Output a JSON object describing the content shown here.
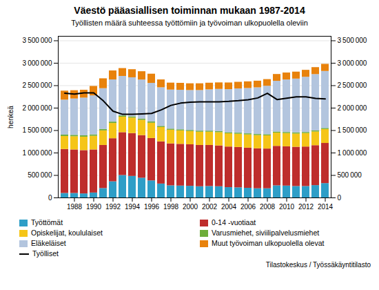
{
  "chart_data": {
    "type": "bar",
    "title": "Väestö pääasiallisen toiminnan mukaan 1987-2014",
    "subtitle": "Työllisten määrä suhteessa työttömiin ja työvoiman ulkopuolella oleviin",
    "ylabel": "henkeä",
    "source": "Tilastokeskus / Työssäkäyntitilasto",
    "categories": [
      null,
      "1988",
      null,
      "1990",
      null,
      "1992",
      null,
      "1994",
      null,
      "1996",
      null,
      "1998",
      null,
      "2000",
      null,
      "2002",
      null,
      "2004",
      null,
      "2006",
      null,
      "2008",
      null,
      "2010",
      null,
      "2012",
      null,
      "2014"
    ],
    "stacked": true,
    "series": [
      {
        "name": "Työttömät",
        "color": "#2E9EC7",
        "values": [
          100000,
          100000,
          90000,
          110000,
          210000,
          360000,
          500000,
          480000,
          440000,
          380000,
          310000,
          270000,
          265000,
          260000,
          250000,
          255000,
          250000,
          230000,
          225000,
          215000,
          205000,
          205000,
          270000,
          265000,
          255000,
          255000,
          275000,
          320000
        ]
      },
      {
        "name": "0-14 -vuotiaat",
        "color": "#BE2D2C",
        "values": [
          980000,
          970000,
          965000,
          960000,
          960000,
          960000,
          955000,
          955000,
          950000,
          945000,
          940000,
          935000,
          930000,
          925000,
          920000,
          915000,
          910000,
          905000,
          900000,
          895000,
          890000,
          885000,
          880000,
          875000,
          875000,
          880000,
          890000,
          895000
        ]
      },
      {
        "name": "Opiskelijat, koululaiset",
        "color": "#F5C518",
        "values": [
          290000,
          295000,
          300000,
          305000,
          325000,
          340000,
          345000,
          345000,
          340000,
          340000,
          320000,
          305000,
          300000,
          295000,
          295000,
          295000,
          295000,
          295000,
          295000,
          295000,
          295000,
          295000,
          295000,
          295000,
          295000,
          300000,
          305000,
          310000
        ]
      },
      {
        "name": "Varusmiehet, siviilipalvelusmiehet",
        "color": "#6EAD3A",
        "values": [
          30000,
          30000,
          30000,
          30000,
          30000,
          30000,
          28000,
          28000,
          28000,
          28000,
          25000,
          24000,
          24000,
          24000,
          24000,
          24000,
          24000,
          24000,
          24000,
          24000,
          24000,
          24000,
          24000,
          24000,
          24000,
          24000,
          24000,
          24000
        ]
      },
      {
        "name": "Eläkeläiset",
        "color": "#B3C5DE",
        "values": [
          780000,
          810000,
          840000,
          870000,
          910000,
          940000,
          880000,
          870000,
          870000,
          860000,
          860000,
          870000,
          880000,
          890000,
          905000,
          920000,
          940000,
          960000,
          985000,
          1010000,
          1040000,
          1080000,
          1130000,
          1170000,
          1200000,
          1230000,
          1255000,
          1270000
        ]
      },
      {
        "name": "Muut työvoiman ulkopuolella olevat",
        "color": "#E8820C",
        "values": [
          200000,
          185000,
          175000,
          210000,
          220000,
          200000,
          175000,
          180000,
          185000,
          205000,
          175000,
          155000,
          155000,
          150000,
          150000,
          148000,
          145000,
          148000,
          148000,
          148000,
          148000,
          148000,
          152000,
          155000,
          155000,
          155000,
          155000,
          158000
        ]
      },
      {
        "name": "Työlliset",
        "type": "line",
        "color": "#000000",
        "values": [
          2330000,
          2310000,
          2340000,
          2340000,
          2160000,
          1930000,
          1860000,
          1860000,
          1870000,
          1880000,
          1960000,
          2060000,
          2110000,
          2130000,
          2140000,
          2140000,
          2140000,
          2150000,
          2165000,
          2185000,
          2225000,
          2330000,
          2190000,
          2220000,
          2250000,
          2250000,
          2215000,
          2205000
        ]
      }
    ],
    "ylim": [
      0,
      3600000
    ],
    "yticks": [
      0,
      {
        "value": 500000,
        "label": "500 000"
      },
      {
        "value": 1000000,
        "label": "1 000 000"
      },
      {
        "value": 1500000,
        "label": "1 500 000"
      },
      {
        "value": 2000000,
        "label": "2 000 000"
      },
      {
        "value": 2500000,
        "label": "2 500 000"
      },
      {
        "value": 3000000,
        "label": "3 000 000"
      },
      {
        "value": 3500000,
        "label": "3 500 000"
      }
    ],
    "y2lim": [
      0,
      3600000
    ],
    "y2ticks": [
      0,
      {
        "value": 500000,
        "label": "500 000"
      },
      {
        "value": 1000000,
        "label": "1 000 000"
      },
      {
        "value": 1500000,
        "label": "1 500 000"
      },
      {
        "value": 2000000,
        "label": "2 000 000"
      },
      {
        "value": 2500000,
        "label": "2 500 000"
      },
      {
        "value": 3000000,
        "label": "3 000 000"
      },
      {
        "value": 3500000,
        "label": "3 500 000"
      }
    ],
    "grid": true,
    "legend": "bottom"
  }
}
